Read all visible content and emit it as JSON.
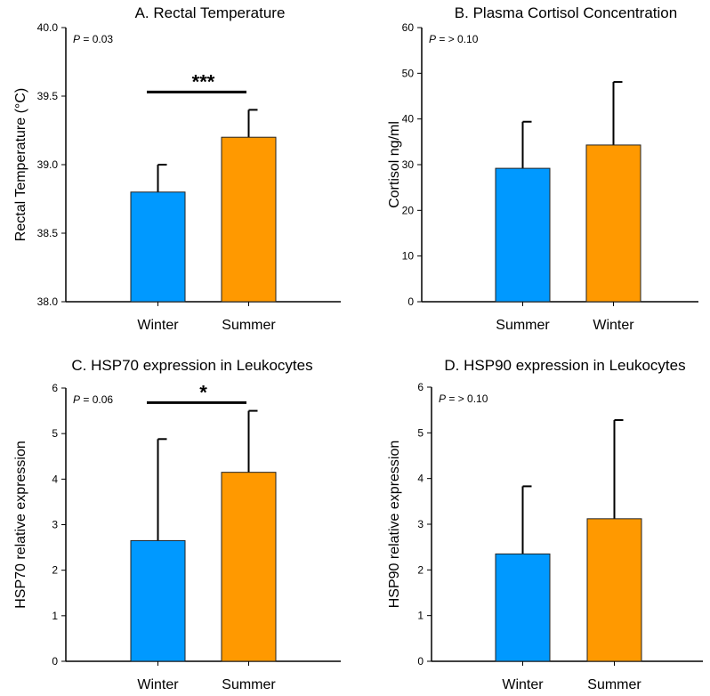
{
  "chart_data": [
    {
      "type": "bar",
      "title": "A. Rectal Temperature",
      "ylabel": "Rectal Temperature (°C)",
      "xlabel": "",
      "ylim": [
        38.0,
        40.0
      ],
      "yticks": [
        "38.0",
        "38.5",
        "39.0",
        "39.5",
        "40.0"
      ],
      "categories": [
        "Winter",
        "Summer"
      ],
      "values": [
        38.8,
        39.2
      ],
      "errors_upper": [
        39.0,
        39.4
      ],
      "colors": [
        "#0099ff",
        "#ff9900"
      ],
      "p_label": "P",
      "p_value": " = 0.03",
      "significance": {
        "label": "***",
        "y": 39.53
      }
    },
    {
      "type": "bar",
      "title": "B. Plasma Cortisol Concentration",
      "ylabel": "Cortisol ng/ml",
      "xlabel": "",
      "ylim": [
        0,
        60
      ],
      "yticks": [
        "0",
        "10",
        "20",
        "30",
        "40",
        "50",
        "60"
      ],
      "categories": [
        "Summer",
        "Winter"
      ],
      "values": [
        29.2,
        34.3
      ],
      "errors_upper": [
        39.4,
        48.1
      ],
      "colors": [
        "#0099ff",
        "#ff9900"
      ],
      "p_label": "P",
      "p_value": " = > 0.10"
    },
    {
      "type": "bar",
      "title": "C. HSP70 expression in Leukocytes",
      "ylabel": "HSP70 relative expression",
      "xlabel": "",
      "ylim": [
        0,
        6
      ],
      "yticks": [
        "0",
        "1",
        "2",
        "3",
        "4",
        "5",
        "6"
      ],
      "categories": [
        "Winter",
        "Summer"
      ],
      "values": [
        2.65,
        4.15
      ],
      "errors_upper": [
        4.88,
        5.5
      ],
      "colors": [
        "#0099ff",
        "#ff9900"
      ],
      "p_label": "P",
      "p_value": " = 0.06",
      "significance": {
        "label": "*",
        "y": 5.68
      }
    },
    {
      "type": "bar",
      "title": "D. HSP90 expression in Leukocytes",
      "ylabel": "HSP90 relative expression",
      "xlabel": "",
      "ylim": [
        0,
        6
      ],
      "yticks": [
        "0",
        "1",
        "2",
        "3",
        "4",
        "5",
        "6"
      ],
      "categories": [
        "Winter",
        "Summer"
      ],
      "values": [
        2.35,
        3.12
      ],
      "errors_upper": [
        3.83,
        5.28
      ],
      "colors": [
        "#0099ff",
        "#ff9900"
      ],
      "p_label": "P",
      "p_value": " = > 0.10"
    }
  ]
}
